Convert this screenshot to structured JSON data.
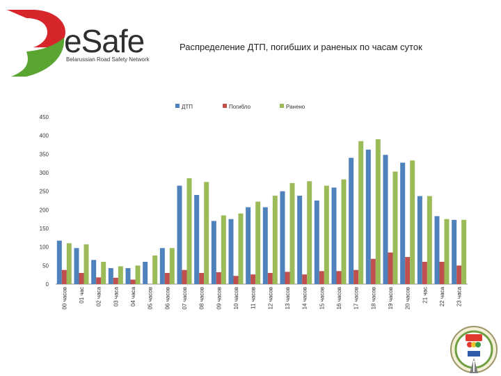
{
  "logo": {
    "brand": "eSafe",
    "tagline": "Belarussian Road Safety Network"
  },
  "chart_data": {
    "type": "bar",
    "title": "Распределение ДТП, погибших и раненых по часам суток",
    "categories": [
      "00 часов",
      "01 час",
      "02 часа",
      "03 часа",
      "04 часа",
      "05 часов",
      "06 часов",
      "07 часов",
      "08 часов",
      "09 часов",
      "10 часов",
      "11 часов",
      "12 часов",
      "13 часов",
      "14 часов",
      "15 часов",
      "16 часов",
      "17 часов",
      "18 часов",
      "19 часов",
      "20 часов",
      "21 час",
      "22 часа",
      "23 часа"
    ],
    "series": [
      {
        "name": "ДТП",
        "color": "#4f81bd",
        "values": [
          117,
          97,
          65,
          43,
          43,
          60,
          97,
          265,
          240,
          170,
          175,
          207,
          207,
          250,
          238,
          225,
          260,
          340,
          362,
          348,
          327,
          237,
          183,
          173
        ]
      },
      {
        "name": "Погибло",
        "color": "#c0504d",
        "values": [
          38,
          30,
          18,
          17,
          12,
          0,
          30,
          38,
          30,
          32,
          22,
          26,
          30,
          33,
          26,
          35,
          35,
          38,
          68,
          85,
          73,
          60,
          60,
          50
        ]
      },
      {
        "name": "Ранено",
        "color": "#9bbb59",
        "values": [
          110,
          107,
          60,
          48,
          50,
          77,
          97,
          285,
          275,
          185,
          190,
          222,
          238,
          272,
          277,
          265,
          282,
          385,
          390,
          303,
          333,
          237,
          175,
          173
        ]
      }
    ],
    "ylim": [
      0,
      450
    ],
    "yticks": [
      0,
      50,
      100,
      150,
      200,
      250,
      300,
      350,
      400,
      450
    ],
    "legend": "top-center",
    "grid": false
  }
}
